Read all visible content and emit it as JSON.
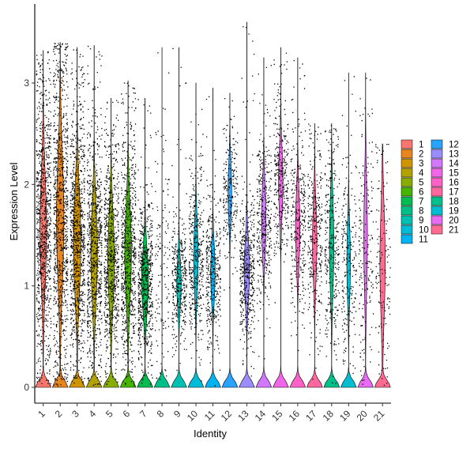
{
  "chart_data": {
    "type": "violin",
    "title": "",
    "xlabel": "Identity",
    "ylabel": "Expression Level",
    "ylim": [
      -0.15,
      3.75
    ],
    "yticks": [
      0,
      1,
      2,
      3
    ],
    "grid": false,
    "legend_position": "right",
    "legend_columns": 2,
    "categories": [
      "1",
      "2",
      "3",
      "4",
      "5",
      "6",
      "7",
      "8",
      "9",
      "10",
      "11",
      "12",
      "13",
      "14",
      "15",
      "16",
      "17",
      "18",
      "19",
      "20",
      "21"
    ],
    "colors": [
      "#F8766D",
      "#E7851E",
      "#D09400",
      "#B2A100",
      "#89AC00",
      "#45B500",
      "#00BC51",
      "#00C087",
      "#00C0B2",
      "#00BCD6",
      "#00B3F2",
      "#29A3FF",
      "#9C8DFF",
      "#D277FF",
      "#F166E8",
      "#FF61C7",
      "#FF689F",
      "#00C08B",
      "#00BDD2",
      "#E76BF3",
      "#FF6C91"
    ],
    "series": [
      {
        "category": "1",
        "max": 3.32,
        "zero_fraction": 0.45,
        "point_density": 1.0,
        "bulk_range": [
          0.35,
          2.75
        ]
      },
      {
        "category": "2",
        "max": 3.4,
        "zero_fraction": 0.42,
        "point_density": 1.0,
        "bulk_range": [
          0.25,
          3.05
        ]
      },
      {
        "category": "3",
        "max": 3.35,
        "zero_fraction": 0.42,
        "point_density": 1.0,
        "bulk_range": [
          0.3,
          2.55
        ]
      },
      {
        "category": "4",
        "max": 3.37,
        "zero_fraction": 0.45,
        "point_density": 0.85,
        "bulk_range": [
          0.3,
          2.35
        ]
      },
      {
        "category": "5",
        "max": 2.85,
        "zero_fraction": 0.45,
        "point_density": 0.8,
        "bulk_range": [
          0.3,
          2.25
        ]
      },
      {
        "category": "6",
        "max": 3.02,
        "zero_fraction": 0.45,
        "point_density": 0.8,
        "bulk_range": [
          0.3,
          2.35
        ]
      },
      {
        "category": "7",
        "max": 2.85,
        "zero_fraction": 0.45,
        "point_density": 0.7,
        "bulk_range": [
          0.35,
          1.75
        ]
      },
      {
        "category": "8",
        "max": 3.35,
        "zero_fraction": 0.95,
        "point_density": 0.15,
        "bulk_range": [
          0.2,
          2.4
        ]
      },
      {
        "category": "9",
        "max": 3.35,
        "zero_fraction": 0.55,
        "point_density": 0.4,
        "bulk_range": [
          0.5,
          1.55
        ]
      },
      {
        "category": "10",
        "max": 3.0,
        "zero_fraction": 0.55,
        "point_density": 0.45,
        "bulk_range": [
          0.5,
          2.05
        ]
      },
      {
        "category": "11",
        "max": 2.95,
        "zero_fraction": 0.55,
        "point_density": 0.4,
        "bulk_range": [
          0.5,
          1.75
        ]
      },
      {
        "category": "12",
        "max": 2.9,
        "zero_fraction": 0.6,
        "point_density": 0.25,
        "bulk_range": [
          1.3,
          2.55
        ]
      },
      {
        "category": "13",
        "max": 3.6,
        "zero_fraction": 0.5,
        "point_density": 0.5,
        "bulk_range": [
          0.5,
          1.8
        ]
      },
      {
        "category": "14",
        "max": 3.25,
        "zero_fraction": 0.55,
        "point_density": 0.4,
        "bulk_range": [
          0.9,
          2.4
        ]
      },
      {
        "category": "15",
        "max": 3.35,
        "zero_fraction": 0.55,
        "point_density": 0.35,
        "bulk_range": [
          1.3,
          2.75
        ]
      },
      {
        "category": "16",
        "max": 3.25,
        "zero_fraction": 0.55,
        "point_density": 0.35,
        "bulk_range": [
          0.8,
          2.35
        ]
      },
      {
        "category": "17",
        "max": 2.6,
        "zero_fraction": 0.55,
        "point_density": 0.35,
        "bulk_range": [
          0.6,
          2.25
        ]
      },
      {
        "category": "18",
        "max": 2.6,
        "zero_fraction": 0.55,
        "point_density": 0.35,
        "bulk_range": [
          0.4,
          2.4
        ]
      },
      {
        "category": "19",
        "max": 3.1,
        "zero_fraction": 0.6,
        "point_density": 0.25,
        "bulk_range": [
          0.4,
          2.05
        ]
      },
      {
        "category": "20",
        "max": 3.1,
        "zero_fraction": 0.6,
        "point_density": 0.2,
        "bulk_range": [
          0.3,
          2.65
        ]
      },
      {
        "category": "21",
        "max": 2.4,
        "zero_fraction": 0.5,
        "point_density": 0.15,
        "bulk_range": [
          0.05,
          2.4
        ]
      }
    ]
  }
}
